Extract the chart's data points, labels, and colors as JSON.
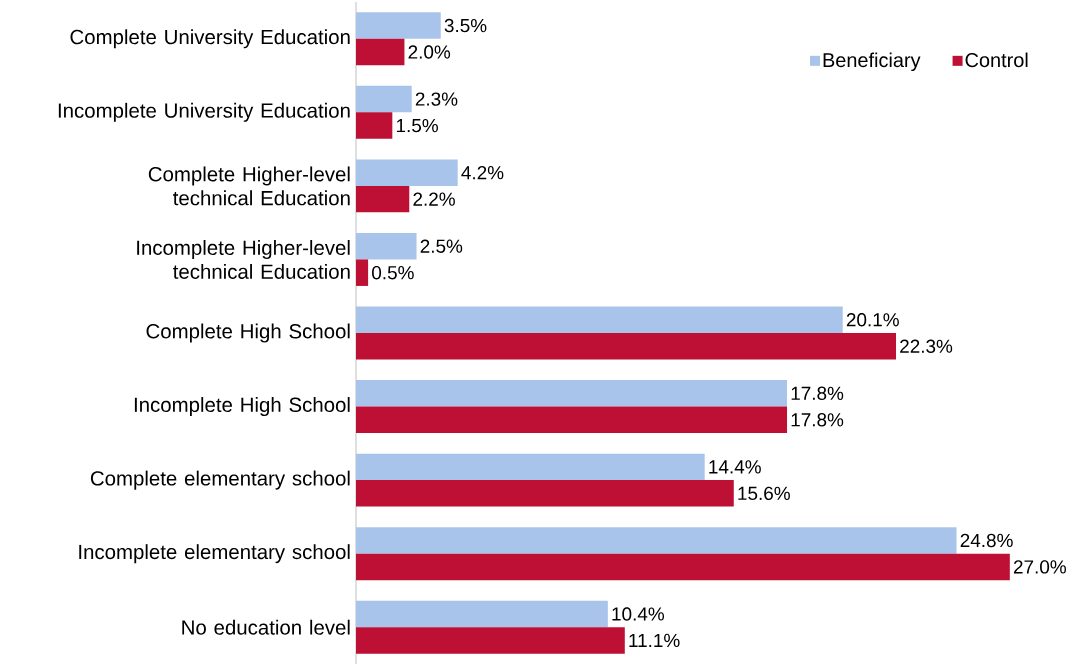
{
  "chart_data": {
    "type": "bar",
    "orientation": "horizontal",
    "categories": [
      "Complete University Education",
      "Incomplete University Education",
      "Complete Higher-level technical Education",
      "Incomplete Higher-level technical Education",
      "Complete High School",
      "Incomplete High School",
      "Complete elementary school",
      "Incomplete elementary school",
      "No education level"
    ],
    "series": [
      {
        "name": "Beneficiary",
        "color": "#a9c4eb",
        "values": [
          3.5,
          2.3,
          4.2,
          2.5,
          20.1,
          17.8,
          14.4,
          24.8,
          10.4
        ],
        "value_labels": [
          "3.5%",
          "2.3%",
          "4.2%",
          "2.5%",
          "20.1%",
          "17.8%",
          "14.4%",
          "24.8%",
          "10.4%"
        ]
      },
      {
        "name": "Control",
        "color": "#be0f34",
        "values": [
          2.0,
          1.5,
          2.2,
          0.5,
          22.3,
          17.8,
          15.6,
          27.0,
          11.1
        ],
        "value_labels": [
          "2.0%",
          "1.5%",
          "2.2%",
          "0.5%",
          "22.3%",
          "17.8%",
          "15.6%",
          "27.0%",
          "11.1%"
        ]
      }
    ],
    "legend": "top right"
  }
}
